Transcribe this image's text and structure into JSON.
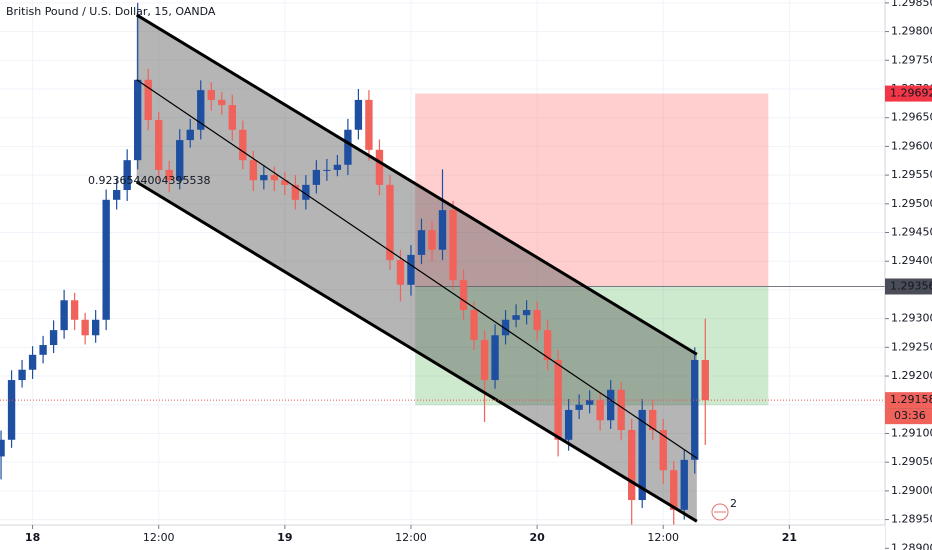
{
  "chart_data": {
    "type": "candlestick",
    "title": "British Pound / U.S. Dollar, 15, OANDA",
    "annotation": "0.9236544004395538",
    "events_badge": "2",
    "up_color": "#1e4fa0",
    "down_color": "#f0625a",
    "grid": true,
    "xlim": [
      -3.1,
      81.1
    ],
    "ylim": [
      1.28897,
      1.29855
    ],
    "xticks": [
      {
        "value": 0,
        "label": "18"
      },
      {
        "value": 12,
        "label": "12:00"
      },
      {
        "value": 24,
        "label": "19"
      },
      {
        "value": 36,
        "label": "12:00"
      },
      {
        "value": 48,
        "label": "20"
      },
      {
        "value": 60,
        "label": "12:00"
      },
      {
        "value": 72,
        "label": "21"
      }
    ],
    "yticks": [
      {
        "value": 1.2985,
        "label": "1.29850"
      },
      {
        "value": 1.298,
        "label": "1.29800"
      },
      {
        "value": 1.2975,
        "label": "1.29750"
      },
      {
        "value": 1.297,
        "label": "1.29700"
      },
      {
        "value": 1.2965,
        "label": "1.29650"
      },
      {
        "value": 1.296,
        "label": "1.29600"
      },
      {
        "value": 1.2955,
        "label": "1.29550"
      },
      {
        "value": 1.295,
        "label": "1.29500"
      },
      {
        "value": 1.2945,
        "label": "1.29450"
      },
      {
        "value": 1.294,
        "label": "1.29400"
      },
      {
        "value": 1.2935,
        "label": "1.29350"
      },
      {
        "value": 1.293,
        "label": "1.29300"
      },
      {
        "value": 1.2925,
        "label": "1.29250"
      },
      {
        "value": 1.292,
        "label": "1.29200"
      },
      {
        "value": 1.2915,
        "label": "1.29150"
      },
      {
        "value": 1.291,
        "label": "1.29100"
      },
      {
        "value": 1.2905,
        "label": "1.29050"
      },
      {
        "value": 1.29,
        "label": "1.29000"
      },
      {
        "value": 1.2895,
        "label": "1.28950"
      },
      {
        "value": 1.289,
        "label": "1.28900"
      }
    ],
    "x": [
      -3,
      -2,
      -1,
      0,
      1,
      2,
      3,
      4,
      5,
      6,
      7,
      8,
      9,
      10,
      11,
      12,
      13,
      14,
      15,
      16,
      17,
      18,
      19,
      20,
      21,
      22,
      23,
      24,
      25,
      26,
      27,
      28,
      29,
      30,
      31,
      32,
      33,
      34,
      35,
      36,
      37,
      38,
      39,
      40,
      41,
      42,
      43,
      44,
      45,
      46,
      47,
      48,
      49,
      50,
      51,
      52,
      53,
      54,
      55,
      56,
      57,
      58,
      59,
      60,
      61,
      62,
      63,
      64
    ],
    "open": [
      1.2906,
      1.29089,
      1.29193,
      1.29211,
      1.29237,
      1.29254,
      1.2928,
      1.29332,
      1.29298,
      1.29271,
      1.29298,
      1.29507,
      1.29524,
      1.29576,
      1.29716,
      1.29646,
      1.29559,
      1.29541,
      1.29611,
      1.29629,
      1.29698,
      1.29681,
      1.29672,
      1.29629,
      1.29576,
      1.29541,
      1.2955,
      1.29541,
      1.29533,
      1.29507,
      1.29533,
      1.29559,
      1.29559,
      1.29568,
      1.29629,
      1.29681,
      1.29594,
      1.29533,
      1.29402,
      1.29359,
      1.29411,
      1.29454,
      1.2942,
      1.29489,
      1.29367,
      1.29315,
      1.29263,
      1.29193,
      1.29271,
      1.29298,
      1.29306,
      1.29315,
      1.2928,
      1.29228,
      1.29089,
      1.29141,
      1.2915,
      1.29158,
      1.29123,
      1.29176,
      1.29106,
      1.28984,
      1.29141,
      1.29106,
      1.29036,
      1.28967,
      1.29054,
      1.29228
    ],
    "high": [
      1.29105,
      1.2921,
      1.29228,
      1.29252,
      1.2927,
      1.29297,
      1.2935,
      1.29345,
      1.2931,
      1.29315,
      1.29525,
      1.29545,
      1.29595,
      1.2985,
      1.29735,
      1.2966,
      1.29575,
      1.2963,
      1.29648,
      1.29715,
      1.29712,
      1.29695,
      1.2969,
      1.29645,
      1.29592,
      1.29568,
      1.29565,
      1.29556,
      1.2955,
      1.2955,
      1.29576,
      1.29578,
      1.29585,
      1.29648,
      1.297,
      1.29698,
      1.29612,
      1.2955,
      1.2942,
      1.29428,
      1.29474,
      1.2947,
      1.2956,
      1.29505,
      1.29385,
      1.2933,
      1.2928,
      1.2929,
      1.29315,
      1.29325,
      1.29332,
      1.2933,
      1.29298,
      1.29245,
      1.2916,
      1.29168,
      1.29175,
      1.29172,
      1.29193,
      1.2919,
      1.29125,
      1.2916,
      1.29158,
      1.29125,
      1.29052,
      1.29072,
      1.2925,
      1.293
    ],
    "low": [
      1.2902,
      1.29075,
      1.2918,
      1.29195,
      1.29222,
      1.2924,
      1.29265,
      1.2928,
      1.29255,
      1.29258,
      1.2928,
      1.2949,
      1.29505,
      1.2956,
      1.29628,
      1.2954,
      1.2952,
      1.29525,
      1.29598,
      1.29612,
      1.29662,
      1.29655,
      1.2961,
      1.2956,
      1.29522,
      1.29525,
      1.29522,
      1.29515,
      1.2949,
      1.2949,
      1.29518,
      1.2954,
      1.29548,
      1.2955,
      1.29612,
      1.29575,
      1.29515,
      1.29385,
      1.2933,
      1.2934,
      1.29395,
      1.294,
      1.29402,
      1.2935,
      1.29298,
      1.29245,
      1.2912,
      1.29178,
      1.29255,
      1.29285,
      1.2929,
      1.29262,
      1.2921,
      1.2906,
      1.2907,
      1.29125,
      1.29135,
      1.29105,
      1.29108,
      1.29088,
      1.289,
      1.2897,
      1.29088,
      1.29012,
      1.289,
      1.2895,
      1.2903,
      1.2908
    ],
    "close": [
      1.29089,
      1.29193,
      1.29211,
      1.29237,
      1.29254,
      1.2928,
      1.29332,
      1.29298,
      1.29271,
      1.29298,
      1.29507,
      1.29524,
      1.29576,
      1.29716,
      1.29646,
      1.29559,
      1.29541,
      1.29611,
      1.29629,
      1.29698,
      1.29681,
      1.29672,
      1.29629,
      1.29576,
      1.29541,
      1.2955,
      1.29541,
      1.29533,
      1.29507,
      1.29533,
      1.29559,
      1.29559,
      1.29568,
      1.29629,
      1.29681,
      1.29594,
      1.29533,
      1.29402,
      1.29359,
      1.29411,
      1.29454,
      1.2942,
      1.29489,
      1.29367,
      1.29315,
      1.29263,
      1.29193,
      1.29271,
      1.29298,
      1.29306,
      1.29315,
      1.2928,
      1.29228,
      1.29089,
      1.29141,
      1.2915,
      1.29158,
      1.29123,
      1.29176,
      1.29106,
      1.28984,
      1.29141,
      1.29106,
      1.29036,
      1.28967,
      1.29054,
      1.29228,
      1.29158
    ],
    "channel": {
      "x": [
        9.9,
        63.2
      ],
      "upper": [
        1.29829,
        1.29238
      ],
      "middle": [
        1.29716,
        1.29057
      ],
      "lower": [
        1.29538,
        1.28947
      ]
    },
    "position": {
      "x": [
        36.4,
        70.0
      ],
      "stop": 1.29692,
      "entry": 1.29356,
      "target": 1.29149
    },
    "current_price": 1.29158,
    "countdown": "03:36"
  }
}
